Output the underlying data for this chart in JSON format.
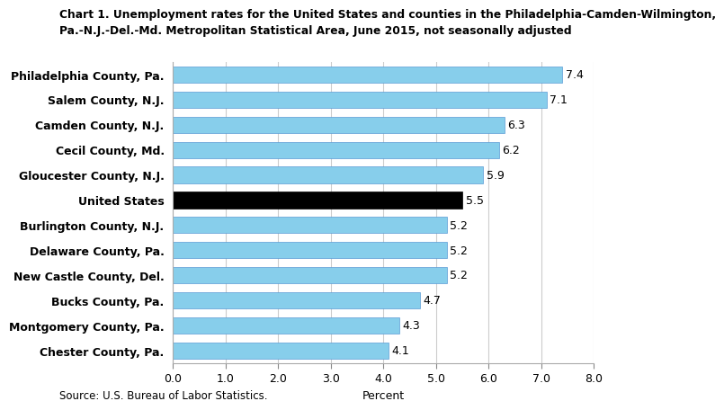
{
  "title_line1": "Chart 1. Unemployment rates for the United States and counties in the Philadelphia-Camden-Wilmington,",
  "title_line2": "Pa.-N.J.-Del.-Md. Metropolitan Statistical Area, June 2015, not seasonally adjusted",
  "categories": [
    "Chester County, Pa.",
    "Montgomery County, Pa.",
    "Bucks County, Pa.",
    "New Castle County, Del.",
    "Delaware County, Pa.",
    "Burlington County, N.J.",
    "United States",
    "Gloucester County, N.J.",
    "Cecil County, Md.",
    "Camden County, N.J.",
    "Salem County, N.J.",
    "Philadelphia County, Pa."
  ],
  "values": [
    4.1,
    4.3,
    4.7,
    5.2,
    5.2,
    5.2,
    5.5,
    5.9,
    6.2,
    6.3,
    7.1,
    7.4
  ],
  "bar_colors": [
    "#87CEEB",
    "#87CEEB",
    "#87CEEB",
    "#87CEEB",
    "#87CEEB",
    "#87CEEB",
    "#000000",
    "#87CEEB",
    "#87CEEB",
    "#87CEEB",
    "#87CEEB",
    "#87CEEB"
  ],
  "xlabel": "Percent",
  "xlim": [
    0.0,
    8.0
  ],
  "xticks": [
    0.0,
    1.0,
    2.0,
    3.0,
    4.0,
    5.0,
    6.0,
    7.0,
    8.0
  ],
  "source": "Source: U.S. Bureau of Labor Statistics.",
  "bar_edgecolor": "#5B9BD5",
  "grid_color": "#cccccc",
  "title_fontsize": 8.8,
  "label_fontsize": 9,
  "tick_fontsize": 9,
  "value_fontsize": 9,
  "source_fontsize": 8.5
}
